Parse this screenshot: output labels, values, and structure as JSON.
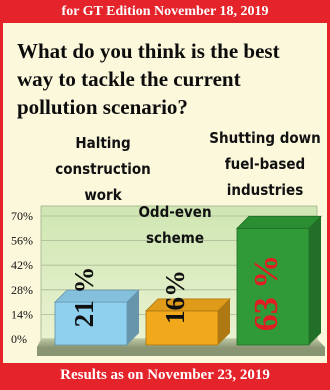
{
  "header": {
    "banner": "for GT Edition November 18, 2019"
  },
  "question": {
    "text": "What do you think is the best way to tackle the current pollution scenario?"
  },
  "footer": {
    "banner": "Results as on November 23, 2019"
  },
  "colors": {
    "accent": "#e5232b",
    "background": "#fbf8dc",
    "bar_blue": "#8fd0ef",
    "bar_orange": "#f2a81b",
    "bar_green": "#2f9a37",
    "pct_text": [
      "#101010",
      "#101010",
      "#e11d24"
    ]
  },
  "chart_data": {
    "type": "bar",
    "title": "",
    "xlabel": "",
    "ylabel": "",
    "ylim": [
      0,
      70
    ],
    "yticks": [
      "0%",
      "14%",
      "28%",
      "42%",
      "56%",
      "70%"
    ],
    "grid": true,
    "categories": [
      [
        "Halting",
        "construction",
        "work"
      ],
      [
        "Odd-even",
        "scheme"
      ],
      [
        "Shutting down",
        "fuel-based",
        "industries"
      ]
    ],
    "values": [
      21,
      16,
      63
    ],
    "value_labels": [
      "21 %",
      "16%",
      "63 %"
    ]
  }
}
